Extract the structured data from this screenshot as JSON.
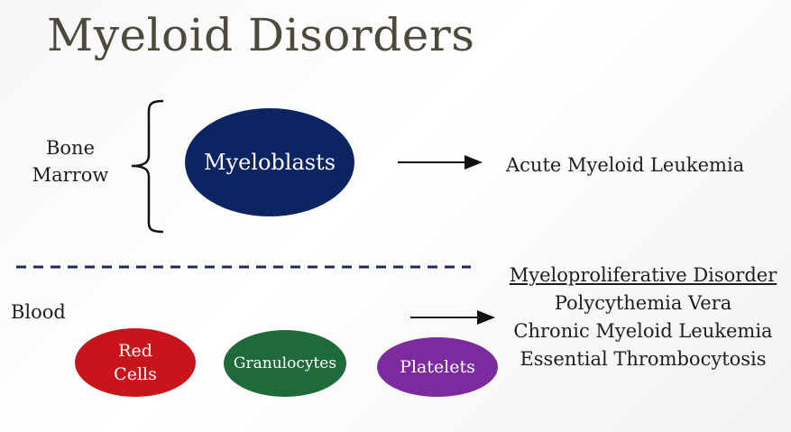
{
  "title": "Myeloid Disorders",
  "labels": {
    "bone": "Bone",
    "marrow": "Marrow",
    "blood": "Blood"
  },
  "nodes": {
    "myeloblasts": "Myeloblasts",
    "red_cells_line1": "Red",
    "red_cells_line2": "Cells",
    "granulocytes": "Granulocytes",
    "platelets": "Platelets"
  },
  "outcomes": {
    "aml": "Acute Myeloid Leukemia",
    "mpd_heading": "Myeloproliferative Disorder",
    "mpd_items": [
      "Polycythemia Vera",
      "Chronic Myeloid Leukemia",
      "Essential Thrombocytosis"
    ]
  },
  "colors": {
    "myeloblasts": "#0d2463",
    "red_cells": "#c8151b",
    "granulocytes": "#1f6a3b",
    "platelets": "#7b2b9e",
    "divider": "#1c2a5c",
    "title": "#4d4a3c"
  }
}
